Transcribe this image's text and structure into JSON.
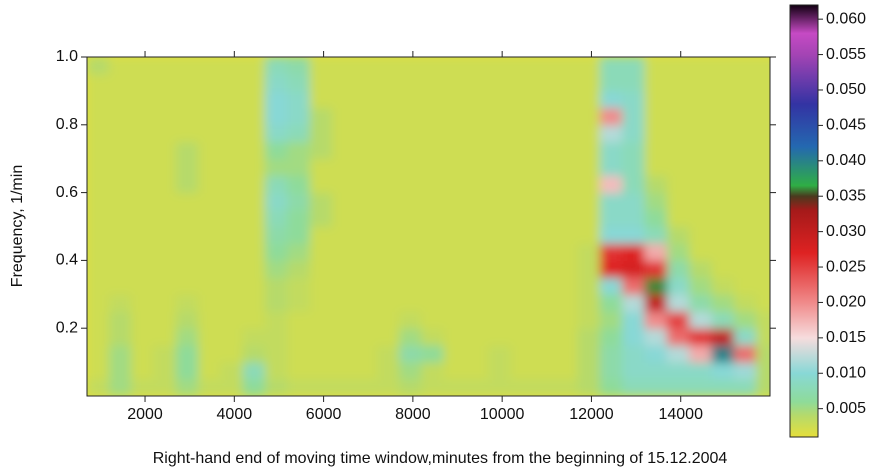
{
  "chart_data": {
    "type": "heatmap",
    "x_label": "Right-hand end of moving time window,minutes from the beginning of 15.12.2004",
    "y_label": "Frequency, 1/min",
    "xlim": [
      700,
      16000
    ],
    "ylim": [
      0,
      1
    ],
    "xticks": [
      2000,
      4000,
      6000,
      8000,
      10000,
      12000,
      14000
    ],
    "yticks": [
      0.2,
      0.4,
      0.6,
      0.8,
      {
        "value": 1,
        "label": "1.0"
      }
    ],
    "x": [
      950,
      1450,
      1950,
      2450,
      2950,
      3450,
      3950,
      4450,
      4950,
      5450,
      5950,
      6450,
      6950,
      7450,
      7950,
      8450,
      8950,
      9450,
      9950,
      10450,
      10950,
      11450,
      11950,
      12450,
      12950,
      13450,
      13950,
      14450,
      14950,
      15450,
      15950
    ],
    "y": [
      0.025,
      0.075,
      0.125,
      0.175,
      0.225,
      0.275,
      0.325,
      0.375,
      0.425,
      0.475,
      0.525,
      0.575,
      0.625,
      0.675,
      0.725,
      0.775,
      0.825,
      0.875,
      0.925,
      0.975
    ],
    "z": [
      [
        0.003,
        0.005,
        0.003,
        0.003,
        0.005,
        0.003,
        0.003,
        0.006,
        0.004,
        0.003,
        0.003,
        0.003,
        0.003,
        0.003,
        0.004,
        0.003,
        0.003,
        0.003,
        0.003,
        0.003,
        0.003,
        0.003,
        0.004,
        0.006,
        0.008,
        0.008,
        0.008,
        0.008,
        0.008,
        0.008,
        0.004
      ],
      [
        0.002,
        0.005,
        0.002,
        0.003,
        0.006,
        0.002,
        0.003,
        0.008,
        0.003,
        0.002,
        0.002,
        0.002,
        0.002,
        0.003,
        0.005,
        0.003,
        0.002,
        0.002,
        0.003,
        0.002,
        0.002,
        0.002,
        0.004,
        0.007,
        0.009,
        0.009,
        0.009,
        0.009,
        0.01,
        0.011,
        0.004
      ],
      [
        0.002,
        0.005,
        0.002,
        0.003,
        0.006,
        0.002,
        0.002,
        0.004,
        0.003,
        0.002,
        0.002,
        0.002,
        0.002,
        0.003,
        0.007,
        0.006,
        0.002,
        0.002,
        0.003,
        0.002,
        0.002,
        0.002,
        0.004,
        0.007,
        0.009,
        0.01,
        0.012,
        0.018,
        0.04,
        0.022,
        0.004
      ],
      [
        0.002,
        0.004,
        0.002,
        0.002,
        0.005,
        0.002,
        0.002,
        0.003,
        0.003,
        0.002,
        0.002,
        0.002,
        0.002,
        0.002,
        0.005,
        0.003,
        0.002,
        0.002,
        0.002,
        0.002,
        0.002,
        0.002,
        0.004,
        0.006,
        0.01,
        0.012,
        0.022,
        0.026,
        0.03,
        0.009,
        0.003
      ],
      [
        0.002,
        0.004,
        0.002,
        0.002,
        0.004,
        0.002,
        0.002,
        0.002,
        0.003,
        0.002,
        0.002,
        0.002,
        0.002,
        0.002,
        0.003,
        0.002,
        0.002,
        0.002,
        0.002,
        0.002,
        0.002,
        0.002,
        0.003,
        0.005,
        0.01,
        0.02,
        0.025,
        0.012,
        0.008,
        0.005,
        0.003
      ],
      [
        0.002,
        0.003,
        0.002,
        0.002,
        0.003,
        0.002,
        0.002,
        0.002,
        0.004,
        0.003,
        0.002,
        0.002,
        0.002,
        0.002,
        0.002,
        0.002,
        0.002,
        0.002,
        0.002,
        0.002,
        0.002,
        0.002,
        0.003,
        0.006,
        0.012,
        0.03,
        0.012,
        0.007,
        0.005,
        0.003,
        0.002
      ],
      [
        0.002,
        0.002,
        0.002,
        0.002,
        0.002,
        0.002,
        0.002,
        0.002,
        0.004,
        0.003,
        0.002,
        0.002,
        0.002,
        0.002,
        0.002,
        0.002,
        0.002,
        0.002,
        0.002,
        0.002,
        0.002,
        0.002,
        0.003,
        0.01,
        0.022,
        0.036,
        0.009,
        0.005,
        0.003,
        0.002,
        0.002
      ],
      [
        0.002,
        0.002,
        0.002,
        0.002,
        0.002,
        0.002,
        0.002,
        0.002,
        0.005,
        0.004,
        0.002,
        0.002,
        0.002,
        0.002,
        0.002,
        0.002,
        0.002,
        0.002,
        0.002,
        0.002,
        0.002,
        0.002,
        0.003,
        0.027,
        0.028,
        0.026,
        0.007,
        0.004,
        0.002,
        0.002,
        0.002
      ],
      [
        0.002,
        0.002,
        0.002,
        0.002,
        0.002,
        0.002,
        0.002,
        0.002,
        0.006,
        0.005,
        0.002,
        0.002,
        0.002,
        0.002,
        0.002,
        0.002,
        0.002,
        0.002,
        0.002,
        0.002,
        0.002,
        0.002,
        0.003,
        0.026,
        0.027,
        0.018,
        0.005,
        0.002,
        0.002,
        0.002,
        0.002
      ],
      [
        0.002,
        0.002,
        0.002,
        0.002,
        0.002,
        0.002,
        0.002,
        0.002,
        0.007,
        0.006,
        0.002,
        0.002,
        0.002,
        0.002,
        0.002,
        0.002,
        0.002,
        0.002,
        0.002,
        0.002,
        0.002,
        0.002,
        0.002,
        0.01,
        0.01,
        0.008,
        0.004,
        0.002,
        0.002,
        0.002,
        0.002
      ],
      [
        0.002,
        0.002,
        0.002,
        0.002,
        0.002,
        0.002,
        0.002,
        0.002,
        0.008,
        0.006,
        0.004,
        0.002,
        0.002,
        0.002,
        0.002,
        0.002,
        0.002,
        0.002,
        0.002,
        0.002,
        0.002,
        0.002,
        0.002,
        0.009,
        0.009,
        0.006,
        0.002,
        0.002,
        0.002,
        0.002,
        0.002
      ],
      [
        0.002,
        0.002,
        0.002,
        0.002,
        0.002,
        0.002,
        0.002,
        0.002,
        0.009,
        0.007,
        0.004,
        0.002,
        0.002,
        0.002,
        0.002,
        0.002,
        0.002,
        0.002,
        0.002,
        0.002,
        0.002,
        0.002,
        0.002,
        0.009,
        0.009,
        0.005,
        0.002,
        0.002,
        0.002,
        0.002,
        0.002
      ],
      [
        0.002,
        0.002,
        0.002,
        0.002,
        0.004,
        0.002,
        0.002,
        0.002,
        0.008,
        0.006,
        0.002,
        0.002,
        0.002,
        0.002,
        0.002,
        0.002,
        0.002,
        0.002,
        0.002,
        0.002,
        0.002,
        0.002,
        0.002,
        0.017,
        0.008,
        0.004,
        0.002,
        0.002,
        0.002,
        0.002,
        0.002
      ],
      [
        0.002,
        0.002,
        0.002,
        0.002,
        0.004,
        0.002,
        0.002,
        0.002,
        0.005,
        0.005,
        0.002,
        0.002,
        0.002,
        0.002,
        0.002,
        0.002,
        0.002,
        0.002,
        0.002,
        0.002,
        0.002,
        0.002,
        0.002,
        0.009,
        0.008,
        0.002,
        0.002,
        0.002,
        0.002,
        0.002,
        0.002
      ],
      [
        0.002,
        0.002,
        0.002,
        0.002,
        0.004,
        0.002,
        0.002,
        0.002,
        0.006,
        0.005,
        0.004,
        0.002,
        0.002,
        0.002,
        0.002,
        0.002,
        0.002,
        0.002,
        0.002,
        0.002,
        0.002,
        0.002,
        0.002,
        0.009,
        0.008,
        0.002,
        0.002,
        0.002,
        0.002,
        0.002,
        0.002
      ],
      [
        0.002,
        0.002,
        0.002,
        0.002,
        0.002,
        0.002,
        0.002,
        0.002,
        0.009,
        0.008,
        0.004,
        0.002,
        0.002,
        0.002,
        0.002,
        0.002,
        0.002,
        0.002,
        0.002,
        0.002,
        0.002,
        0.002,
        0.002,
        0.012,
        0.009,
        0.002,
        0.002,
        0.002,
        0.002,
        0.002,
        0.002
      ],
      [
        0.002,
        0.002,
        0.002,
        0.002,
        0.002,
        0.002,
        0.002,
        0.002,
        0.01,
        0.009,
        0.004,
        0.002,
        0.002,
        0.002,
        0.002,
        0.002,
        0.002,
        0.002,
        0.002,
        0.002,
        0.002,
        0.002,
        0.002,
        0.02,
        0.009,
        0.002,
        0.002,
        0.002,
        0.002,
        0.002,
        0.002
      ],
      [
        0.002,
        0.002,
        0.002,
        0.002,
        0.002,
        0.002,
        0.002,
        0.002,
        0.01,
        0.009,
        0.002,
        0.002,
        0.002,
        0.002,
        0.002,
        0.002,
        0.002,
        0.002,
        0.002,
        0.002,
        0.002,
        0.002,
        0.002,
        0.01,
        0.009,
        0.002,
        0.002,
        0.002,
        0.002,
        0.002,
        0.002
      ],
      [
        0.002,
        0.002,
        0.002,
        0.002,
        0.002,
        0.002,
        0.002,
        0.002,
        0.009,
        0.008,
        0.002,
        0.002,
        0.002,
        0.002,
        0.002,
        0.002,
        0.002,
        0.002,
        0.002,
        0.002,
        0.002,
        0.002,
        0.002,
        0.008,
        0.008,
        0.002,
        0.002,
        0.002,
        0.002,
        0.002,
        0.002
      ],
      [
        0.004,
        0.002,
        0.002,
        0.002,
        0.002,
        0.002,
        0.002,
        0.002,
        0.008,
        0.007,
        0.002,
        0.002,
        0.002,
        0.002,
        0.002,
        0.002,
        0.002,
        0.002,
        0.002,
        0.002,
        0.002,
        0.002,
        0.002,
        0.008,
        0.008,
        0.002,
        0.002,
        0.002,
        0.002,
        0.002,
        0.002
      ]
    ],
    "colorscale": [
      {
        "value": 0,
        "color": "#e6df3b"
      },
      {
        "value": 0.004,
        "color": "#b6da6a"
      },
      {
        "value": 0.006,
        "color": "#8edb9a"
      },
      {
        "value": 0.01,
        "color": "#88d8d6"
      },
      {
        "value": 0.015,
        "color": "#f6dcdd"
      },
      {
        "value": 0.02,
        "color": "#f08a8a"
      },
      {
        "value": 0.027,
        "color": "#de2222"
      },
      {
        "value": 0.033,
        "color": "#a51a1a"
      },
      {
        "value": 0.035,
        "color": "#4a3a1e"
      },
      {
        "value": 0.0365,
        "color": "#2fae45"
      },
      {
        "value": 0.042,
        "color": "#2468b0"
      },
      {
        "value": 0.048,
        "color": "#3333a3"
      },
      {
        "value": 0.055,
        "color": "#a444b4"
      },
      {
        "value": 0.058,
        "color": "#c64ac4"
      },
      {
        "value": 0.062,
        "color": "#120012"
      }
    ],
    "colorbar_lim": [
      0.001,
      0.062
    ],
    "colorbar_ticks": [
      0.005,
      {
        "value": 0.01,
        "label": "0.010"
      },
      0.015,
      {
        "value": 0.02,
        "label": "0.020"
      },
      0.025,
      {
        "value": 0.03,
        "label": "0.030"
      },
      0.035,
      {
        "value": 0.04,
        "label": "0.040"
      },
      0.045,
      {
        "value": 0.05,
        "label": "0.050"
      },
      0.055,
      {
        "value": 0.06,
        "label": "0.060"
      }
    ]
  }
}
